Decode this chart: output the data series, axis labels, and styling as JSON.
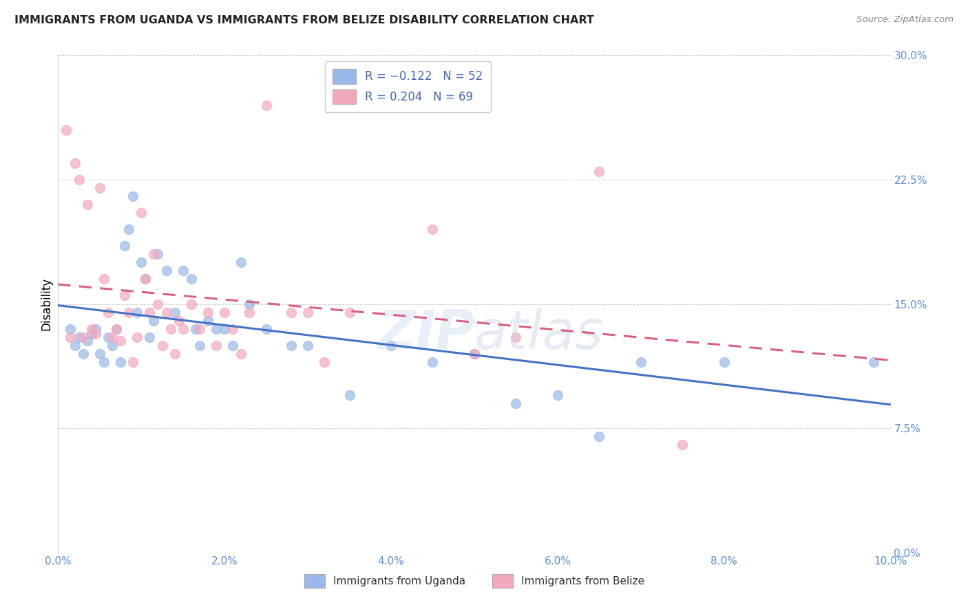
{
  "title": "IMMIGRANTS FROM UGANDA VS IMMIGRANTS FROM BELIZE DISABILITY CORRELATION CHART",
  "source": "Source: ZipAtlas.com",
  "ylabel": "Disability",
  "xlim": [
    0.0,
    10.0
  ],
  "ylim": [
    0.0,
    30.0
  ],
  "yticks": [
    0.0,
    7.5,
    15.0,
    22.5,
    30.0
  ],
  "xticks": [
    0.0,
    2.0,
    4.0,
    6.0,
    8.0,
    10.0
  ],
  "uganda_color": "#9ab9e8",
  "belize_color": "#f4a8bc",
  "uganda_line_color": "#4472c4",
  "belize_line_color": "#d96080",
  "watermark": "ZIPatlas",
  "uganda_R": -0.122,
  "uganda_N": 52,
  "belize_R": 0.204,
  "belize_N": 69,
  "uganda_x": [
    0.15,
    0.2,
    0.25,
    0.3,
    0.35,
    0.4,
    0.45,
    0.5,
    0.55,
    0.6,
    0.65,
    0.7,
    0.75,
    0.8,
    0.85,
    0.9,
    0.95,
    1.0,
    1.05,
    1.1,
    1.15,
    1.2,
    1.3,
    1.4,
    1.5,
    1.6,
    1.65,
    1.7,
    1.8,
    1.9,
    2.0,
    2.1,
    2.2,
    2.3,
    2.5,
    2.8,
    3.0,
    3.5,
    4.0,
    4.5,
    5.0,
    5.5,
    6.0,
    6.5,
    7.0,
    8.0,
    9.8
  ],
  "uganda_y": [
    13.5,
    12.5,
    13.0,
    12.0,
    12.8,
    13.2,
    13.5,
    12.0,
    11.5,
    13.0,
    12.5,
    13.5,
    11.5,
    18.5,
    19.5,
    21.5,
    14.5,
    17.5,
    16.5,
    13.0,
    14.0,
    18.0,
    17.0,
    14.5,
    17.0,
    16.5,
    13.5,
    12.5,
    14.0,
    13.5,
    13.5,
    12.5,
    17.5,
    15.0,
    13.5,
    12.5,
    12.5,
    9.5,
    12.5,
    11.5,
    12.0,
    9.0,
    9.5,
    7.0,
    11.5,
    11.5,
    11.5
  ],
  "belize_x": [
    0.1,
    0.15,
    0.2,
    0.25,
    0.3,
    0.35,
    0.4,
    0.45,
    0.5,
    0.55,
    0.6,
    0.65,
    0.7,
    0.75,
    0.8,
    0.85,
    0.9,
    0.95,
    1.0,
    1.05,
    1.1,
    1.15,
    1.2,
    1.25,
    1.3,
    1.35,
    1.4,
    1.45,
    1.5,
    1.6,
    1.7,
    1.8,
    1.9,
    2.0,
    2.1,
    2.2,
    2.3,
    2.5,
    2.8,
    3.0,
    3.2,
    3.5,
    4.5,
    5.0,
    5.5,
    6.5,
    7.5
  ],
  "belize_y": [
    25.5,
    13.0,
    23.5,
    22.5,
    13.0,
    21.0,
    13.5,
    13.2,
    22.0,
    16.5,
    14.5,
    13.0,
    13.5,
    12.8,
    15.5,
    14.5,
    11.5,
    13.0,
    20.5,
    16.5,
    14.5,
    18.0,
    15.0,
    12.5,
    14.5,
    13.5,
    12.0,
    14.0,
    13.5,
    15.0,
    13.5,
    14.5,
    12.5,
    14.5,
    13.5,
    12.0,
    14.5,
    27.0,
    14.5,
    14.5,
    11.5,
    14.5,
    19.5,
    12.0,
    13.0,
    23.0,
    6.5
  ]
}
